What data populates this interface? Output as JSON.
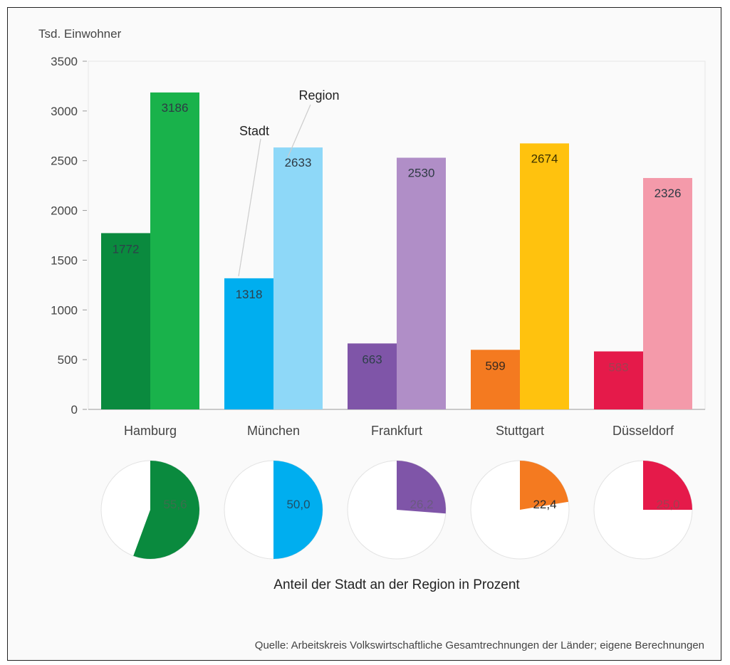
{
  "chart_data": {
    "type": "bar",
    "ylabel": "Tsd. Einwohner",
    "ylim": [
      0,
      3500
    ],
    "yticks": [
      0,
      500,
      1000,
      1500,
      2000,
      2500,
      3000,
      3500
    ],
    "grid": false,
    "categories": [
      "Hamburg",
      "München",
      "Frankfurt",
      "Stuttgart",
      "Düsseldorf"
    ],
    "series": [
      {
        "name": "Stadt",
        "values": [
          1772,
          1318,
          663,
          599,
          583
        ]
      },
      {
        "name": "Region",
        "values": [
          3186,
          2633,
          2530,
          2674,
          2326
        ]
      }
    ],
    "colors": {
      "stadt": [
        "#0a8a3e",
        "#00aeef",
        "#7f55a8",
        "#f47a20",
        "#e51a4a"
      ],
      "region": [
        "#19b24b",
        "#8ed8f8",
        "#b08ec7",
        "#ffc20e",
        "#f49aaa"
      ]
    },
    "series_callouts": [
      "Stadt",
      "Region"
    ],
    "pies": {
      "title": "Anteil der Stadt an der Region in Prozent",
      "values": [
        55.6,
        50.0,
        26.2,
        22.4,
        25.0
      ],
      "labels": [
        "55,6",
        "50,0",
        "26,2",
        "22,4",
        "25,0"
      ]
    },
    "source": "Quelle: Arbeitskreis Volkswirtschaftliche Gesamtrechnungen der Länder; eigene Berechnungen"
  }
}
